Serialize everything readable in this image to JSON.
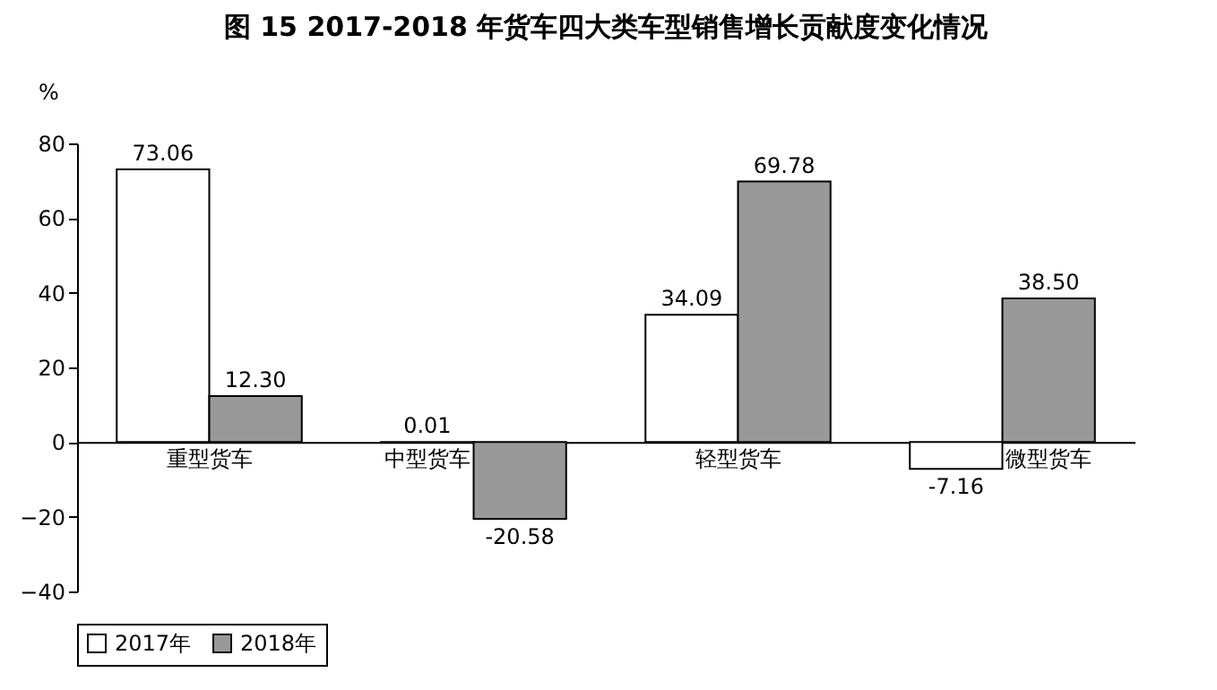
{
  "chart_data": {
    "type": "bar",
    "title": "图 15   2017-2018 年货车四大类车型销售增长贡献度变化情况",
    "ylabel": "%",
    "categories": [
      "重型货车",
      "中型货车",
      "轻型货车",
      "微型货车"
    ],
    "series": [
      {
        "name": "2017年",
        "color": "#ffffff",
        "values": [
          73.06,
          0.01,
          34.09,
          -7.16
        ],
        "value_labels": [
          "73.06",
          "0.01",
          "34.09",
          "-7.16"
        ]
      },
      {
        "name": "2018年",
        "color": "#999999",
        "values": [
          12.3,
          -20.58,
          69.78,
          38.5
        ],
        "value_labels": [
          "12.30",
          "-20.58",
          "69.78",
          "38.50"
        ]
      }
    ],
    "ylim": [
      -40,
      80
    ],
    "yticks": [
      -40,
      -20,
      0,
      20,
      40,
      60,
      80
    ],
    "legend": "bottom"
  }
}
